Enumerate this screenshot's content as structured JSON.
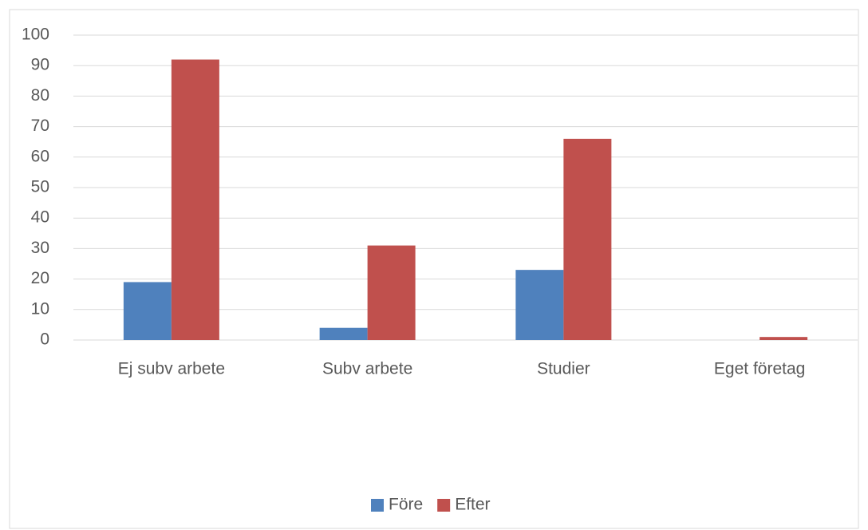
{
  "chart_data": {
    "type": "bar",
    "categories": [
      "Ej subv arbete",
      "Subv arbete",
      "Studier",
      "Eget företag"
    ],
    "series": [
      {
        "name": "Före",
        "color": "#4f81bd",
        "values": [
          19,
          4,
          23,
          0
        ]
      },
      {
        "name": "Efter",
        "color": "#c0504d",
        "values": [
          92,
          31,
          66,
          1
        ]
      }
    ],
    "ylim": [
      0,
      100
    ],
    "yticks": [
      0,
      10,
      20,
      30,
      40,
      50,
      60,
      70,
      80,
      90,
      100
    ],
    "grid": true,
    "legend": "bottom"
  }
}
